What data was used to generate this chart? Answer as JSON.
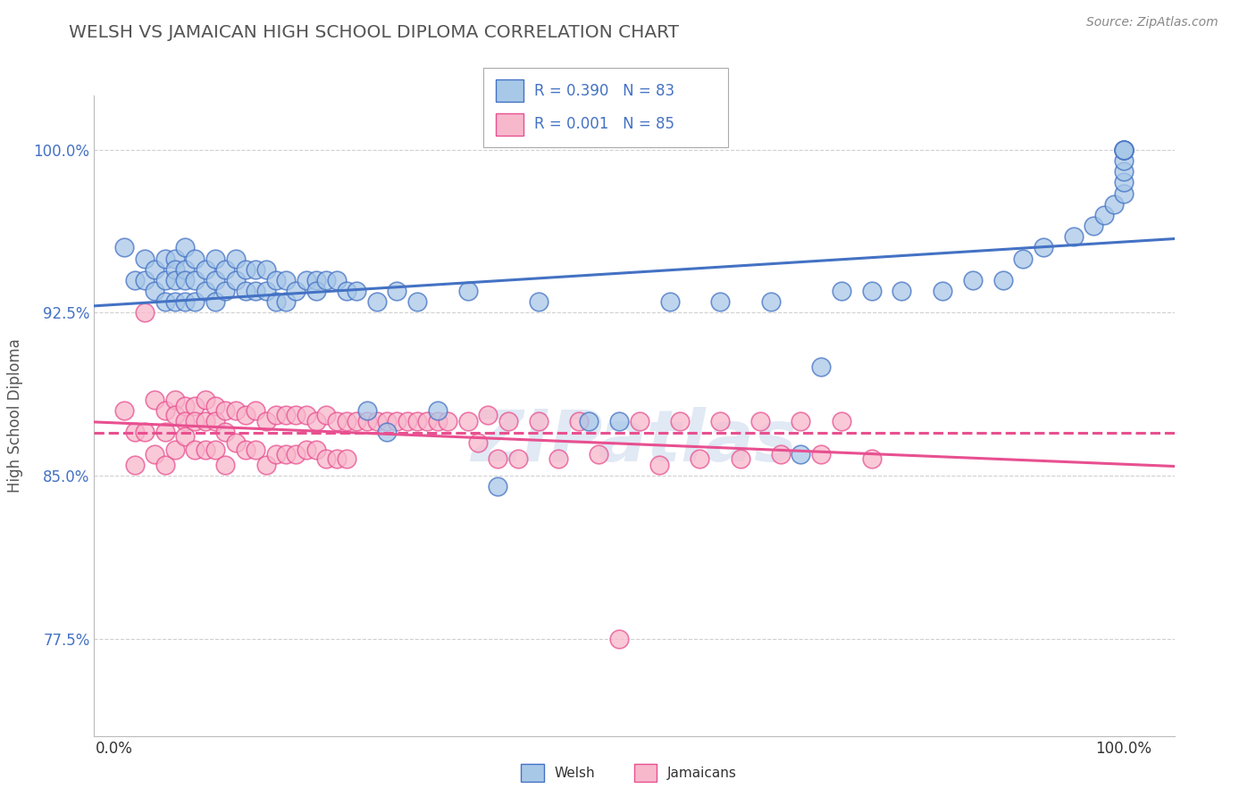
{
  "title": "WELSH VS JAMAICAN HIGH SCHOOL DIPLOMA CORRELATION CHART",
  "source": "Source: ZipAtlas.com",
  "ylabel": "High School Diploma",
  "welsh_R": 0.39,
  "welsh_N": 83,
  "jamaican_R": 0.001,
  "jamaican_N": 85,
  "legend_welsh": "Welsh",
  "legend_jamaican": "Jamaicans",
  "welsh_color": "#a8c8e8",
  "jamaican_color": "#f8b8cc",
  "welsh_line_color": "#4472c4",
  "jamaican_line_color": "#e85090",
  "background_color": "#ffffff",
  "grid_color": "#d0d0d0",
  "title_color": "#555555",
  "welsh_x": [
    0.01,
    0.02,
    0.03,
    0.03,
    0.04,
    0.04,
    0.05,
    0.05,
    0.05,
    0.06,
    0.06,
    0.06,
    0.06,
    0.07,
    0.07,
    0.07,
    0.07,
    0.08,
    0.08,
    0.08,
    0.09,
    0.09,
    0.1,
    0.1,
    0.1,
    0.11,
    0.11,
    0.12,
    0.12,
    0.13,
    0.13,
    0.14,
    0.14,
    0.15,
    0.15,
    0.16,
    0.16,
    0.17,
    0.17,
    0.18,
    0.19,
    0.2,
    0.2,
    0.21,
    0.22,
    0.23,
    0.24,
    0.25,
    0.26,
    0.27,
    0.28,
    0.3,
    0.32,
    0.35,
    0.38,
    0.42,
    0.47,
    0.5,
    0.55,
    0.6,
    0.65,
    0.68,
    0.7,
    0.72,
    0.75,
    0.78,
    0.82,
    0.85,
    0.88,
    0.9,
    0.92,
    0.95,
    0.97,
    0.98,
    0.99,
    1.0,
    1.0,
    1.0,
    1.0,
    1.0,
    1.0,
    1.0,
    1.0
  ],
  "welsh_y": [
    0.955,
    0.94,
    0.95,
    0.94,
    0.945,
    0.935,
    0.95,
    0.94,
    0.93,
    0.95,
    0.945,
    0.94,
    0.93,
    0.955,
    0.945,
    0.94,
    0.93,
    0.95,
    0.94,
    0.93,
    0.945,
    0.935,
    0.95,
    0.94,
    0.93,
    0.945,
    0.935,
    0.95,
    0.94,
    0.945,
    0.935,
    0.945,
    0.935,
    0.945,
    0.935,
    0.94,
    0.93,
    0.94,
    0.93,
    0.935,
    0.94,
    0.94,
    0.935,
    0.94,
    0.94,
    0.935,
    0.935,
    0.88,
    0.93,
    0.87,
    0.935,
    0.93,
    0.88,
    0.935,
    0.845,
    0.93,
    0.875,
    0.875,
    0.93,
    0.93,
    0.93,
    0.86,
    0.9,
    0.935,
    0.935,
    0.935,
    0.935,
    0.94,
    0.94,
    0.95,
    0.955,
    0.96,
    0.965,
    0.97,
    0.975,
    0.98,
    0.985,
    0.99,
    0.995,
    1.0,
    1.0,
    1.0,
    1.0
  ],
  "jamaican_x": [
    0.01,
    0.02,
    0.02,
    0.03,
    0.03,
    0.04,
    0.04,
    0.05,
    0.05,
    0.05,
    0.06,
    0.06,
    0.06,
    0.07,
    0.07,
    0.07,
    0.08,
    0.08,
    0.08,
    0.09,
    0.09,
    0.09,
    0.1,
    0.1,
    0.1,
    0.11,
    0.11,
    0.11,
    0.12,
    0.12,
    0.13,
    0.13,
    0.14,
    0.14,
    0.15,
    0.15,
    0.16,
    0.16,
    0.17,
    0.17,
    0.18,
    0.18,
    0.19,
    0.19,
    0.2,
    0.2,
    0.21,
    0.21,
    0.22,
    0.22,
    0.23,
    0.23,
    0.24,
    0.25,
    0.26,
    0.27,
    0.28,
    0.29,
    0.3,
    0.31,
    0.32,
    0.33,
    0.35,
    0.36,
    0.37,
    0.38,
    0.39,
    0.4,
    0.42,
    0.44,
    0.46,
    0.48,
    0.5,
    0.52,
    0.54,
    0.56,
    0.58,
    0.6,
    0.62,
    0.64,
    0.66,
    0.68,
    0.7,
    0.72,
    0.75
  ],
  "jamaican_y": [
    0.88,
    0.87,
    0.855,
    0.925,
    0.87,
    0.885,
    0.86,
    0.88,
    0.87,
    0.855,
    0.885,
    0.878,
    0.862,
    0.882,
    0.875,
    0.868,
    0.882,
    0.875,
    0.862,
    0.885,
    0.875,
    0.862,
    0.882,
    0.875,
    0.862,
    0.88,
    0.87,
    0.855,
    0.88,
    0.865,
    0.878,
    0.862,
    0.88,
    0.862,
    0.875,
    0.855,
    0.878,
    0.86,
    0.878,
    0.86,
    0.878,
    0.86,
    0.878,
    0.862,
    0.875,
    0.862,
    0.878,
    0.858,
    0.875,
    0.858,
    0.875,
    0.858,
    0.875,
    0.875,
    0.875,
    0.875,
    0.875,
    0.875,
    0.875,
    0.875,
    0.875,
    0.875,
    0.875,
    0.865,
    0.878,
    0.858,
    0.875,
    0.858,
    0.875,
    0.858,
    0.875,
    0.86,
    0.775,
    0.875,
    0.855,
    0.875,
    0.858,
    0.875,
    0.858,
    0.875,
    0.86,
    0.875,
    0.86,
    0.875,
    0.858
  ],
  "xlim": [
    -0.02,
    1.05
  ],
  "ylim": [
    0.73,
    1.025
  ],
  "yticks": [
    0.775,
    0.85,
    0.925,
    1.0
  ],
  "ytick_labels": [
    "77.5%",
    "85.0%",
    "92.5%",
    "100.0%"
  ],
  "xticks": [
    0.0,
    1.0
  ],
  "xtick_labels": [
    "0.0%",
    "100.0%"
  ]
}
